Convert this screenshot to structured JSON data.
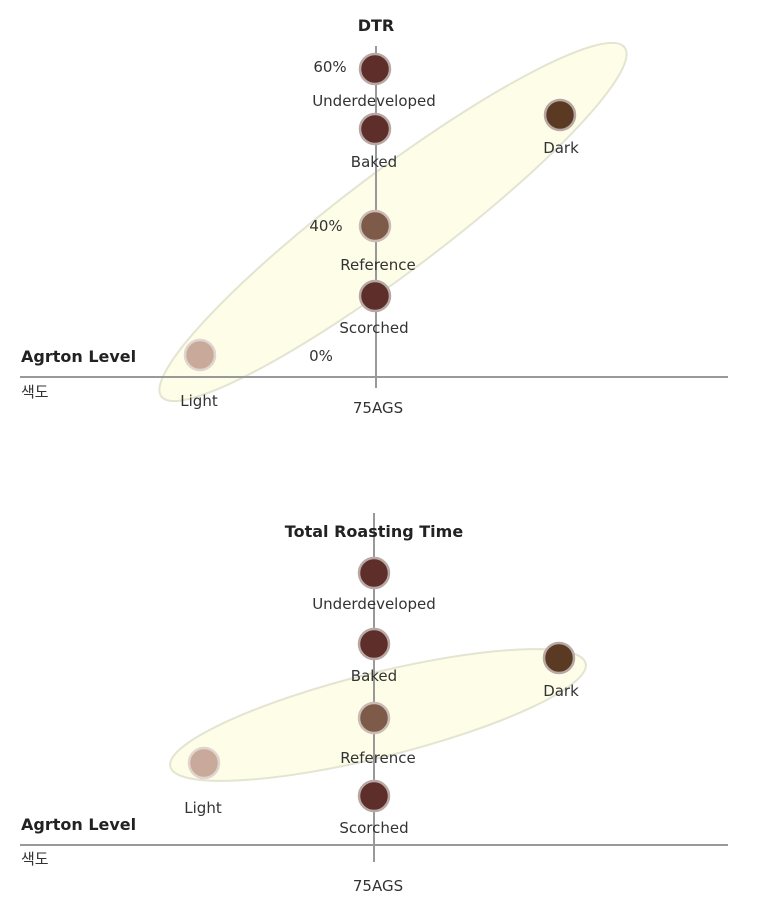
{
  "chart_data": [
    {
      "type": "scatter",
      "title": "DTR",
      "xlabel": "Agrton Level",
      "xlabel_sub": "색도",
      "x_center_label": "75AGS",
      "y_tick_labels": [
        "60%",
        "40%",
        "0%"
      ],
      "points": [
        {
          "name": "Underdeveloped",
          "x": 75,
          "y": 60,
          "color": "#5e2e2a"
        },
        {
          "name": "Baked",
          "x": 75,
          "y": 52,
          "color": "#5e2e2a"
        },
        {
          "name": "Dark",
          "x": 62,
          "y": 56,
          "color": "#5a3a22"
        },
        {
          "name": "Reference",
          "x": 75,
          "y": 40,
          "color": "#7e5a48"
        },
        {
          "name": "Scorched",
          "x": 75,
          "y": 31,
          "color": "#5e2e2a"
        },
        {
          "name": "Light",
          "x": 87,
          "y": 2,
          "color": "#c9aa9a"
        }
      ]
    },
    {
      "type": "scatter",
      "title": "Total Roasting Time",
      "xlabel": "Agrton Level",
      "xlabel_sub": "색도",
      "x_center_label": "75AGS",
      "points": [
        {
          "name": "Underdeveloped",
          "color": "#5e2e2a"
        },
        {
          "name": "Baked",
          "color": "#5e2e2a"
        },
        {
          "name": "Dark",
          "color": "#5a3a22"
        },
        {
          "name": "Reference",
          "color": "#7e5a48"
        },
        {
          "name": "Light",
          "color": "#c9aa9a"
        },
        {
          "name": "Scorched",
          "color": "#5e2e2a"
        }
      ]
    }
  ],
  "colors": {
    "axis": "#999999",
    "ellipse_fill": "#fdfde8",
    "ellipse_stroke": "#e4e4d2"
  }
}
